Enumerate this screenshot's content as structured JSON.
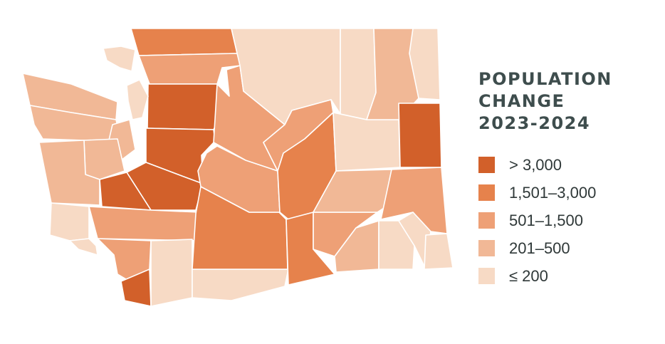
{
  "legend": {
    "title_lines": [
      "POPULATION",
      "CHANGE",
      "2023-2024"
    ],
    "classes": [
      {
        "label": "> 3,000",
        "color": "#d2602a"
      },
      {
        "label": "1,501–3,000",
        "color": "#e6824c"
      },
      {
        "label": "501–1,500",
        "color": "#eea076"
      },
      {
        "label": "201–500",
        "color": "#f1b896"
      },
      {
        "label": "≤ 200",
        "color": "#f7dac5"
      }
    ]
  },
  "regions": [
    {
      "name": "whatcom",
      "class": 1
    },
    {
      "name": "skagit",
      "class": 2
    },
    {
      "name": "snohomish",
      "class": 0
    },
    {
      "name": "king",
      "class": 0
    },
    {
      "name": "pierce",
      "class": 0
    },
    {
      "name": "thurston",
      "class": 0
    },
    {
      "name": "san-juan",
      "class": 4
    },
    {
      "name": "clallam",
      "class": 3
    },
    {
      "name": "jefferson",
      "class": 3
    },
    {
      "name": "kitsap",
      "class": 3
    },
    {
      "name": "mason",
      "class": 3
    },
    {
      "name": "grays-harbor",
      "class": 3
    },
    {
      "name": "pacific",
      "class": 4
    },
    {
      "name": "wahkiakum",
      "class": 4
    },
    {
      "name": "lewis",
      "class": 2
    },
    {
      "name": "cowlitz",
      "class": 2
    },
    {
      "name": "clark",
      "class": 0
    },
    {
      "name": "skamania",
      "class": 4
    },
    {
      "name": "klickitat",
      "class": 4
    },
    {
      "name": "yakima",
      "class": 1
    },
    {
      "name": "kittitas",
      "class": 2
    },
    {
      "name": "chelan",
      "class": 2
    },
    {
      "name": "okanogan",
      "class": 4
    },
    {
      "name": "douglas",
      "class": 2
    },
    {
      "name": "grant",
      "class": 1
    },
    {
      "name": "benton",
      "class": 1
    },
    {
      "name": "franklin",
      "class": 2
    },
    {
      "name": "walla-walla",
      "class": 3
    },
    {
      "name": "adams",
      "class": 3
    },
    {
      "name": "lincoln",
      "class": 4
    },
    {
      "name": "ferry",
      "class": 4
    },
    {
      "name": "stevens",
      "class": 3
    },
    {
      "name": "pend-oreille",
      "class": 4
    },
    {
      "name": "spokane",
      "class": 0
    },
    {
      "name": "whitman",
      "class": 2
    },
    {
      "name": "columbia",
      "class": 4
    },
    {
      "name": "garfield",
      "class": 4
    },
    {
      "name": "asotin",
      "class": 4
    },
    {
      "name": "island",
      "class": 4
    }
  ]
}
